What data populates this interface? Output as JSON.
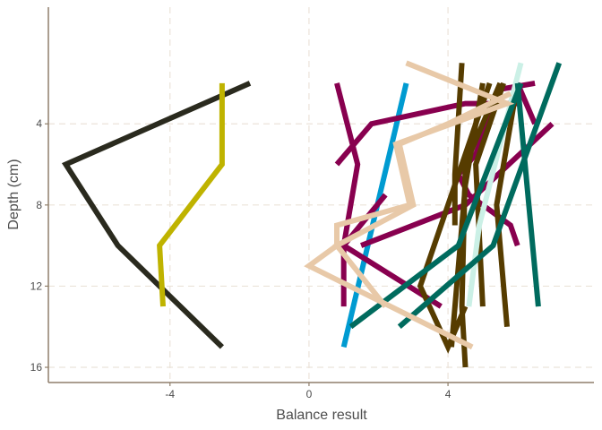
{
  "chart_data": {
    "type": "line",
    "title": "",
    "xlabel": "Balance result",
    "ylabel": "Depth (cm)",
    "xlim": [
      -7.5,
      8.2
    ],
    "ylim": [
      -1.75,
      16.75
    ],
    "y_reversed": true,
    "grid": true,
    "x_ticks": [
      -4,
      0,
      4
    ],
    "y_ticks": [
      4,
      8,
      12,
      16
    ],
    "x_tick_labels": [
      "-4",
      "0",
      "4"
    ],
    "y_tick_labels": [
      "4",
      "8",
      "12",
      "16"
    ],
    "series": [
      {
        "color": "#2a2a1e",
        "points": [
          [
            -1.7,
            2
          ],
          [
            -7.0,
            6
          ],
          [
            -5.5,
            10
          ],
          [
            -2.5,
            15
          ]
        ]
      },
      {
        "color": "#bfb300",
        "points": [
          [
            -2.5,
            2
          ],
          [
            -2.5,
            6
          ],
          [
            -4.3,
            10
          ],
          [
            -4.2,
            13
          ]
        ]
      },
      {
        "color": "#009bd1",
        "points": [
          [
            2.8,
            2
          ],
          [
            1.0,
            15
          ]
        ]
      },
      {
        "color": "#88004f",
        "points": [
          [
            0.8,
            6
          ],
          [
            1.8,
            4
          ],
          [
            4.5,
            3
          ],
          [
            5.0,
            3
          ],
          [
            5.5,
            3
          ],
          [
            6.0,
            3
          ]
        ]
      },
      {
        "color": "#88004f",
        "points": [
          [
            6.5,
            2
          ],
          [
            5.5,
            2.3
          ],
          [
            4.8,
            5.5
          ],
          [
            4.3,
            6.5
          ],
          [
            4.6,
            7.5
          ],
          [
            5.8,
            9
          ],
          [
            6.0,
            10
          ]
        ]
      },
      {
        "color": "#88004f",
        "points": [
          [
            0.8,
            2
          ],
          [
            1.4,
            6
          ],
          [
            1.0,
            10
          ],
          [
            1.0,
            13
          ]
        ]
      },
      {
        "color": "#88004f",
        "points": [
          [
            1.5,
            10
          ],
          [
            4.5,
            8
          ],
          [
            7.0,
            4
          ]
        ]
      },
      {
        "color": "#88004f",
        "points": [
          [
            6.0,
            2
          ],
          [
            6.5,
            4
          ]
        ]
      },
      {
        "color": "#88004f",
        "points": [
          [
            2.2,
            7.5
          ],
          [
            1.0,
            10
          ],
          [
            3.8,
            13
          ]
        ]
      },
      {
        "color": "#563c00",
        "points": [
          [
            4.4,
            1
          ],
          [
            4.2,
            6.5
          ],
          [
            4.2,
            9
          ]
        ]
      },
      {
        "color": "#563c00",
        "points": [
          [
            5.2,
            2
          ],
          [
            3.2,
            12
          ],
          [
            4.0,
            15
          ],
          [
            4.5,
            13
          ]
        ]
      },
      {
        "color": "#563c00",
        "points": [
          [
            5.5,
            2
          ],
          [
            4.5,
            6
          ],
          [
            4.4,
            13
          ],
          [
            4.5,
            16
          ]
        ]
      },
      {
        "color": "#563c00",
        "points": [
          [
            5.6,
            2
          ],
          [
            4.8,
            6
          ],
          [
            5.0,
            13
          ]
        ]
      },
      {
        "color": "#563c00",
        "points": [
          [
            6.0,
            2
          ],
          [
            5.4,
            8
          ],
          [
            5.7,
            14
          ]
        ]
      },
      {
        "color": "#563c00",
        "points": [
          [
            5.0,
            2
          ],
          [
            4.5,
            7
          ],
          [
            4.1,
            15
          ]
        ]
      },
      {
        "color": "#cbf0e6",
        "points": [
          [
            6.1,
            1
          ],
          [
            4.9,
            9
          ],
          [
            4.6,
            13
          ]
        ]
      },
      {
        "color": "#006b5e",
        "points": [
          [
            7.2,
            1
          ],
          [
            5.3,
            10
          ],
          [
            2.6,
            14
          ]
        ]
      },
      {
        "color": "#006b5e",
        "points": [
          [
            6.1,
            2
          ],
          [
            4.3,
            10
          ],
          [
            1.2,
            14
          ]
        ]
      },
      {
        "color": "#006b5e",
        "points": [
          [
            6.0,
            2
          ],
          [
            6.6,
            13
          ]
        ]
      },
      {
        "color": "#e8c9a8",
        "points": [
          [
            2.8,
            1
          ],
          [
            5.7,
            3
          ],
          [
            2.5,
            5
          ],
          [
            2.9,
            8
          ],
          [
            0.8,
            9
          ],
          [
            0.8,
            10
          ],
          [
            0.0,
            11
          ],
          [
            4.7,
            15
          ]
        ]
      },
      {
        "color": "#e8c9a8",
        "points": [
          [
            5.8,
            2.5
          ],
          [
            4.0,
            4
          ],
          [
            2.6,
            5
          ],
          [
            3.0,
            8
          ],
          [
            0.8,
            10
          ],
          [
            2.2,
            13
          ]
        ]
      }
    ]
  }
}
